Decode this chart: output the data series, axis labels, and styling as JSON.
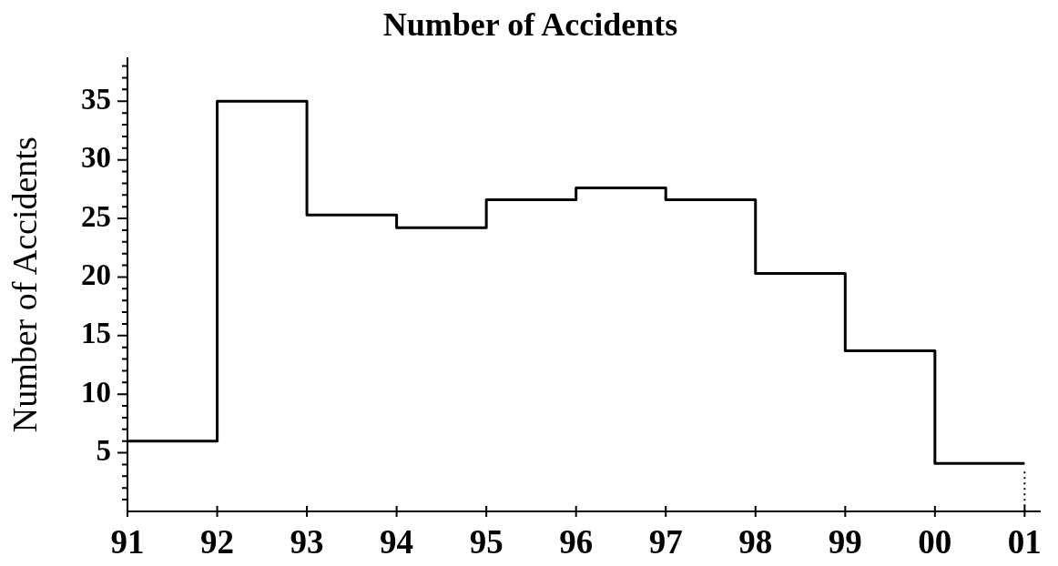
{
  "chart_data": {
    "type": "step",
    "title": "Number of Accidents",
    "ylabel": "Number of Accidents",
    "x": [
      1991,
      1992,
      1993,
      1994,
      1995,
      1996,
      1997,
      1998,
      1999,
      2000,
      2001
    ],
    "series": [
      {
        "color": "#000000",
        "values": [
          6,
          35,
          25.3,
          24.2,
          26.6,
          27.6,
          26.6,
          20.3,
          13.7,
          4.1,
          4.1
        ]
      },
      {
        "type": "line",
        "x": [
          2001,
          2001
        ],
        "values": [
          3.4,
          0
        ],
        "color": "#000000",
        "line_style": "dotted"
      }
    ],
    "xlim": [
      1991,
      2001.17
    ],
    "xticks": [
      {
        "value": 1991,
        "label": "91"
      },
      {
        "value": 1992,
        "label": "92"
      },
      {
        "value": 1993,
        "label": "93"
      },
      {
        "value": 1994,
        "label": "94"
      },
      {
        "value": 1995,
        "label": "95"
      },
      {
        "value": 1996,
        "label": "96"
      },
      {
        "value": 1997,
        "label": "97"
      },
      {
        "value": 1998,
        "label": "98"
      },
      {
        "value": 1999,
        "label": "99"
      },
      {
        "value": 2000,
        "label": "00"
      },
      {
        "value": 2001,
        "label": "01"
      }
    ],
    "ylim": [
      0,
      38.7
    ],
    "yticks": [
      {
        "value": 1,
        "label": null
      },
      {
        "value": 2,
        "label": null
      },
      {
        "value": 3,
        "label": null
      },
      {
        "value": 4,
        "label": null
      },
      5,
      {
        "value": 6,
        "label": null
      },
      {
        "value": 7,
        "label": null
      },
      {
        "value": 8,
        "label": null
      },
      {
        "value": 9,
        "label": null
      },
      10,
      {
        "value": 11,
        "label": null
      },
      {
        "value": 12,
        "label": null
      },
      {
        "value": 13,
        "label": null
      },
      {
        "value": 14,
        "label": null
      },
      15,
      {
        "value": 16,
        "label": null
      },
      {
        "value": 17,
        "label": null
      },
      {
        "value": 18,
        "label": null
      },
      {
        "value": 19,
        "label": null
      },
      20,
      {
        "value": 21,
        "label": null
      },
      {
        "value": 22,
        "label": null
      },
      {
        "value": 23,
        "label": null
      },
      {
        "value": 24,
        "label": null
      },
      25,
      {
        "value": 26,
        "label": null
      },
      {
        "value": 27,
        "label": null
      },
      {
        "value": 28,
        "label": null
      },
      {
        "value": 29,
        "label": null
      },
      30,
      {
        "value": 31,
        "label": null
      },
      {
        "value": 32,
        "label": null
      },
      {
        "value": 33,
        "label": null
      },
      {
        "value": 34,
        "label": null
      },
      35,
      {
        "value": 36,
        "label": null
      },
      {
        "value": 37,
        "label": null
      },
      {
        "value": 38,
        "label": null
      }
    ],
    "grid": false,
    "legend": false
  }
}
